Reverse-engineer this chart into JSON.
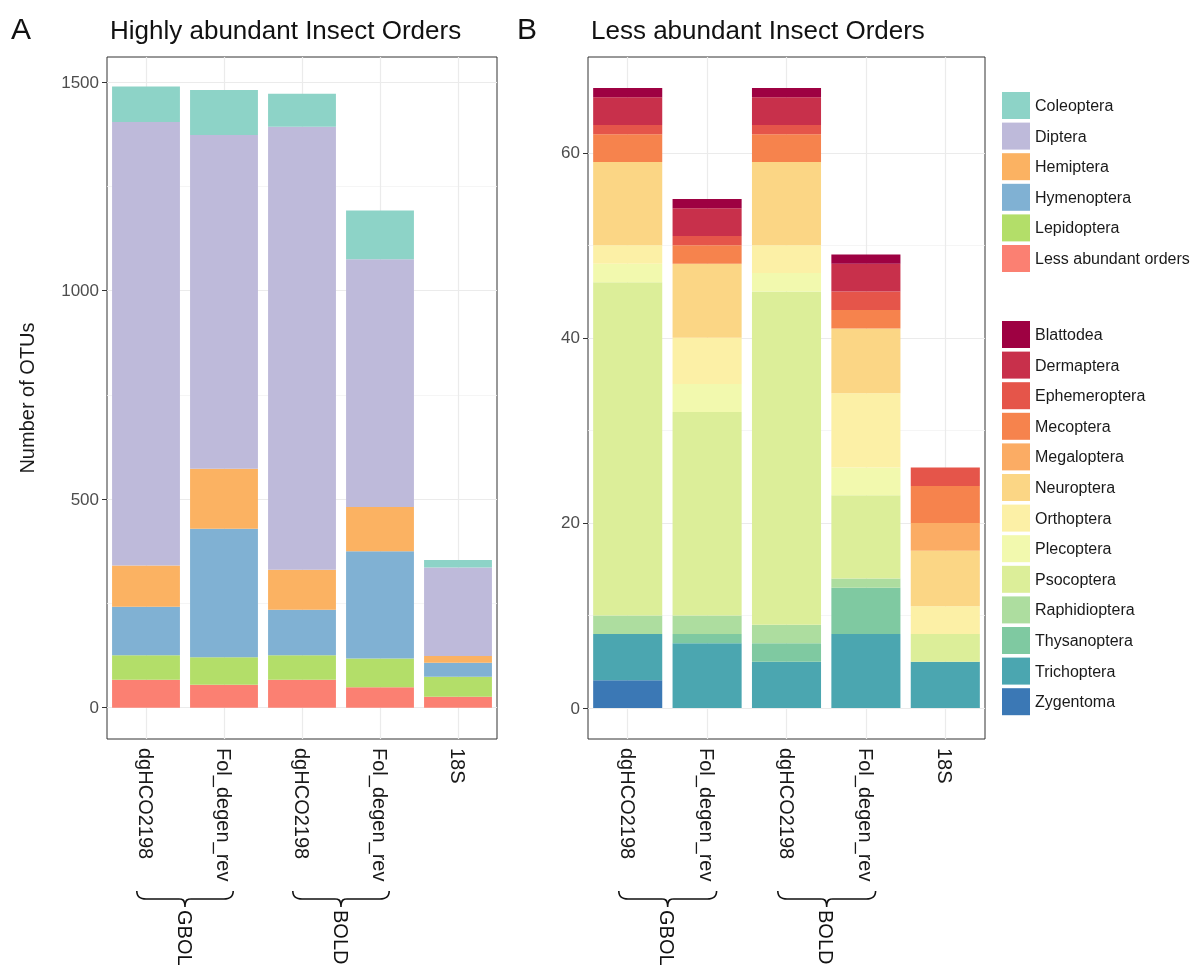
{
  "chart_data": [
    {
      "type": "bar",
      "title": "Highly abundant Insect Orders",
      "ylabel": "Number of OTUs",
      "categories": [
        "dgHCO2198",
        "Fol_degen_rev",
        "dgHCO2198",
        "Fol_degen_rev",
        "18S"
      ],
      "stacked": true,
      "series": [
        {
          "name": "Less abundant orders",
          "color": "#fb8072",
          "values": [
            67,
            55,
            67,
            49,
            26
          ]
        },
        {
          "name": "Lepidoptera",
          "color": "#b3de69",
          "values": [
            59,
            66,
            59,
            69,
            48
          ]
        },
        {
          "name": "Hymenoptera",
          "color": "#80b1d3",
          "values": [
            116,
            308,
            109,
            257,
            34
          ]
        },
        {
          "name": "Hemiptera",
          "color": "#fbb262",
          "values": [
            99,
            144,
            96,
            106,
            16
          ]
        },
        {
          "name": "Diptera",
          "color": "#bebada",
          "values": [
            1063,
            800,
            1062,
            594,
            212
          ]
        },
        {
          "name": "Coleoptera",
          "color": "#8dd3c7",
          "values": [
            85,
            108,
            79,
            117,
            18
          ]
        }
      ],
      "ylim": [
        -75,
        1560
      ],
      "yticks": [
        0,
        500,
        1000,
        1500
      ],
      "grid": true,
      "legend": "right",
      "annotations": [
        "A",
        "GBOL",
        "BOLD"
      ]
    },
    {
      "type": "bar",
      "title": "Less abundant Insect Orders",
      "categories": [
        "dgHCO2198",
        "Fol_degen_rev",
        "dgHCO2198",
        "Fol_degen_rev",
        "18S"
      ],
      "stacked": true,
      "series": [
        {
          "name": "Zygentoma",
          "color": "#3b78b5",
          "values": [
            3,
            0,
            0,
            0,
            0
          ]
        },
        {
          "name": "Trichoptera",
          "color": "#4ba6b0",
          "values": [
            5,
            7,
            5,
            8,
            5
          ]
        },
        {
          "name": "Thysanoptera",
          "color": "#7fc9a1",
          "values": [
            0,
            1,
            2,
            5,
            0
          ]
        },
        {
          "name": "Raphidioptera",
          "color": "#addd9f",
          "values": [
            2,
            2,
            2,
            1,
            0
          ]
        },
        {
          "name": "Psocoptera",
          "color": "#dcee99",
          "values": [
            36,
            22,
            36,
            9,
            3
          ]
        },
        {
          "name": "Plecoptera",
          "color": "#f2f9ae",
          "values": [
            2,
            3,
            2,
            3,
            0
          ]
        },
        {
          "name": "Orthoptera",
          "color": "#fcf0a6",
          "values": [
            2,
            5,
            3,
            8,
            3
          ]
        },
        {
          "name": "Neuroptera",
          "color": "#fbd685",
          "values": [
            9,
            8,
            9,
            7,
            6
          ]
        },
        {
          "name": "Megaloptera",
          "color": "#fbac64",
          "values": [
            0,
            0,
            0,
            0,
            3
          ]
        },
        {
          "name": "Mecoptera",
          "color": "#f6834d",
          "values": [
            3,
            2,
            3,
            2,
            4
          ]
        },
        {
          "name": "Ephemeroptera",
          "color": "#e5554a",
          "values": [
            1,
            1,
            1,
            2,
            2
          ]
        },
        {
          "name": "Dermaptera",
          "color": "#c8304b",
          "values": [
            3,
            3,
            3,
            3,
            0
          ]
        },
        {
          "name": "Blattodea",
          "color": "#9e0142",
          "values": [
            1,
            1,
            1,
            1,
            0
          ]
        }
      ],
      "ylim": [
        -3.35,
        70.35
      ],
      "yticks": [
        0,
        20,
        40,
        60
      ],
      "grid": true,
      "legend": "right",
      "annotations": [
        "B",
        "GBOL",
        "BOLD"
      ]
    }
  ]
}
